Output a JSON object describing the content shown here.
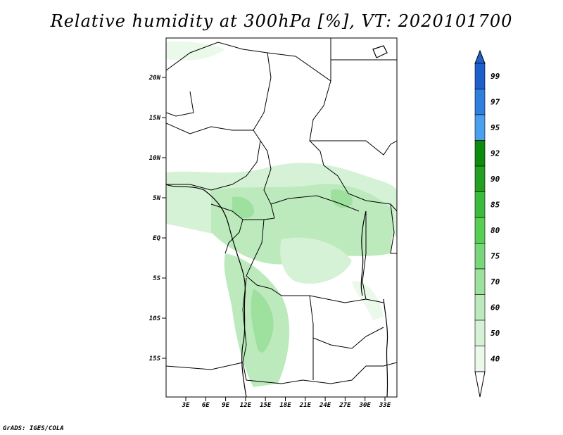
{
  "title": "Relative humidity at 300hPa [%], VT: 2020101700",
  "credit": "GrADS: IGES/COLA",
  "map": {
    "lat_labels": [
      "20N",
      "15N",
      "10N",
      "5N",
      "EQ",
      "5S",
      "10S",
      "15S"
    ],
    "lon_labels": [
      "3E",
      "6E",
      "9E",
      "12E",
      "15E",
      "18E",
      "21E",
      "24E",
      "27E",
      "30E",
      "33E"
    ]
  },
  "colorbar": {
    "levels": [
      "99",
      "97",
      "95",
      "92",
      "90",
      "85",
      "80",
      "75",
      "70",
      "60",
      "50",
      "40"
    ],
    "colors": [
      "#1e5fcc",
      "#2e7fe0",
      "#4aa0f0",
      "#0e8a0e",
      "#22a022",
      "#3cbc3c",
      "#55d055",
      "#7ad67a",
      "#9ee09e",
      "#bdeabd",
      "#d6f2d6",
      "#ebf9eb"
    ],
    "cap_top_color": "#1e5fcc",
    "cap_bottom_color": "#ffffff"
  }
}
